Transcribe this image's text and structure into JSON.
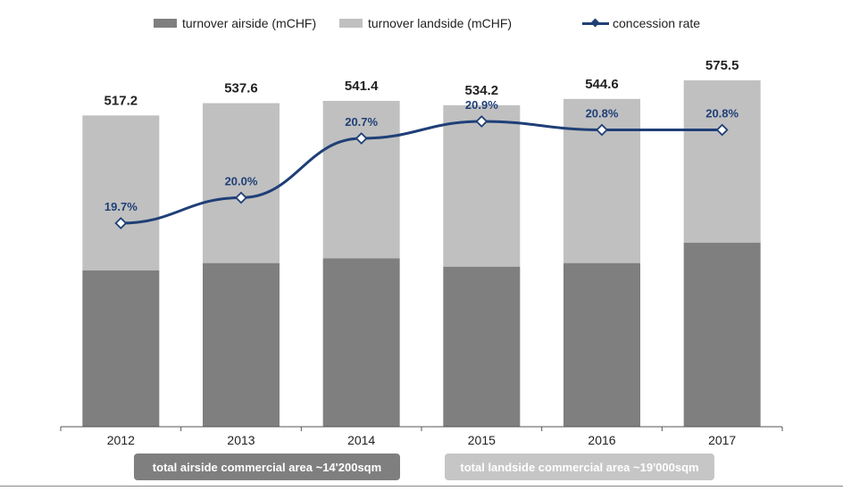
{
  "legend": {
    "airside": "turnover airside (mCHF)",
    "landside": "turnover landside (mCHF)",
    "rate": "concession rate"
  },
  "colors": {
    "airside": "#7f7f7f",
    "landside": "#c0c0c0",
    "rate": "#1f3f77",
    "footer_airside_bg": "#7f7f7f",
    "footer_landside_bg": "#c6c6c6"
  },
  "footer": {
    "airside_area": "total airside commercial area ~14'200sqm",
    "landside_area": "total landside commercial area ~19'000sqm"
  },
  "chart_data": {
    "type": "bar",
    "stacked": true,
    "categories": [
      "2012",
      "2013",
      "2014",
      "2015",
      "2016",
      "2017"
    ],
    "series": [
      {
        "name": "turnover airside (mCHF)",
        "values": [
          260,
          272,
          280,
          266,
          272,
          306
        ]
      },
      {
        "name": "turnover landside (mCHF)",
        "values": [
          257.2,
          265.6,
          261.4,
          268.2,
          272.6,
          269.5
        ]
      }
    ],
    "totals": [
      517.2,
      537.6,
      541.4,
      534.2,
      544.6,
      575.5
    ],
    "total_labels": [
      "517.2",
      "537.6",
      "541.4",
      "534.2",
      "544.6",
      "575.5"
    ],
    "line": {
      "name": "concession rate",
      "values": [
        19.7,
        20.0,
        20.7,
        20.9,
        20.8,
        20.8
      ],
      "labels": [
        "19.7%",
        "20.0%",
        "20.7%",
        "20.9%",
        "20.8%",
        "20.8%"
      ]
    },
    "ylim": [
      0,
      620
    ],
    "line_ylim": [
      17.3,
      21.7
    ],
    "xlabel": "",
    "ylabel": "",
    "grid": false,
    "legend_position": "top"
  }
}
